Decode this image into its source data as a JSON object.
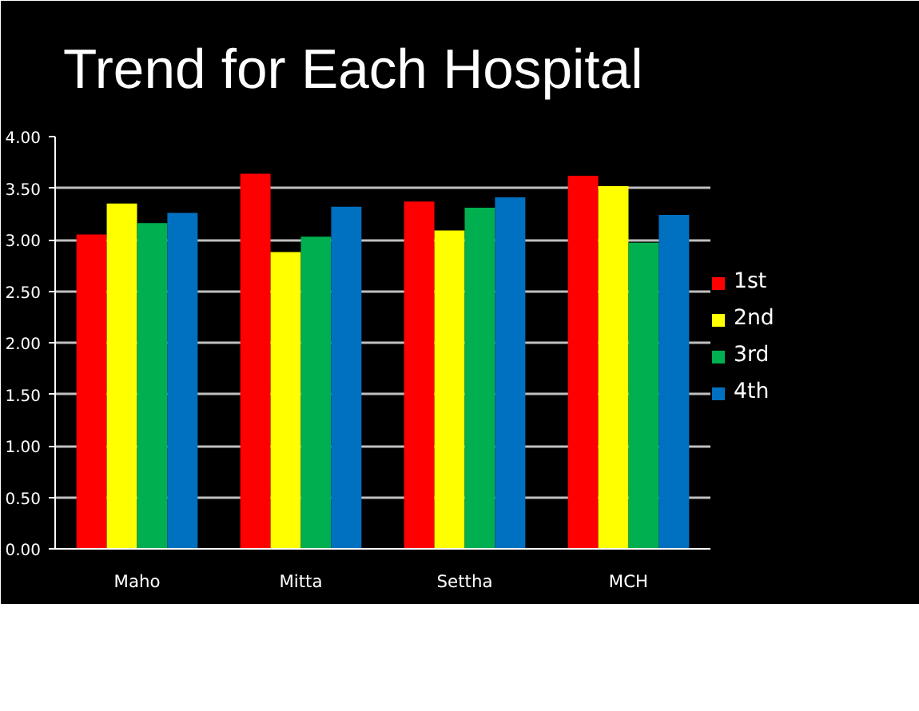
{
  "chart_data": {
    "type": "bar",
    "title": "Trend for Each Hospital",
    "categories": [
      "Maho",
      "Mitta",
      "Settha",
      "MCH"
    ],
    "series": [
      {
        "name": "1st",
        "color": "#ff0000",
        "values": [
          3.05,
          3.64,
          3.37,
          3.62
        ]
      },
      {
        "name": "2nd",
        "color": "#ffff00",
        "values": [
          3.35,
          2.88,
          3.09,
          3.52
        ]
      },
      {
        "name": "3rd",
        "color": "#00b050",
        "values": [
          3.16,
          3.03,
          3.31,
          2.97
        ]
      },
      {
        "name": "4th",
        "color": "#0070c0",
        "values": [
          3.26,
          3.32,
          3.41,
          3.24
        ]
      }
    ],
    "ylim": [
      0,
      4
    ],
    "yticks": [
      {
        "value": 0,
        "label": "0.00"
      },
      {
        "value": 0.5,
        "label": "0.50"
      },
      {
        "value": 1,
        "label": "1.00"
      },
      {
        "value": 1.5,
        "label": "1.50"
      },
      {
        "value": 2,
        "label": "2.00"
      },
      {
        "value": 2.5,
        "label": "2.50"
      },
      {
        "value": 3,
        "label": "3.00"
      },
      {
        "value": 3.5,
        "label": "3.50"
      },
      {
        "value": 4,
        "label": "4.00"
      }
    ],
    "grid": "y",
    "legend": "right"
  }
}
